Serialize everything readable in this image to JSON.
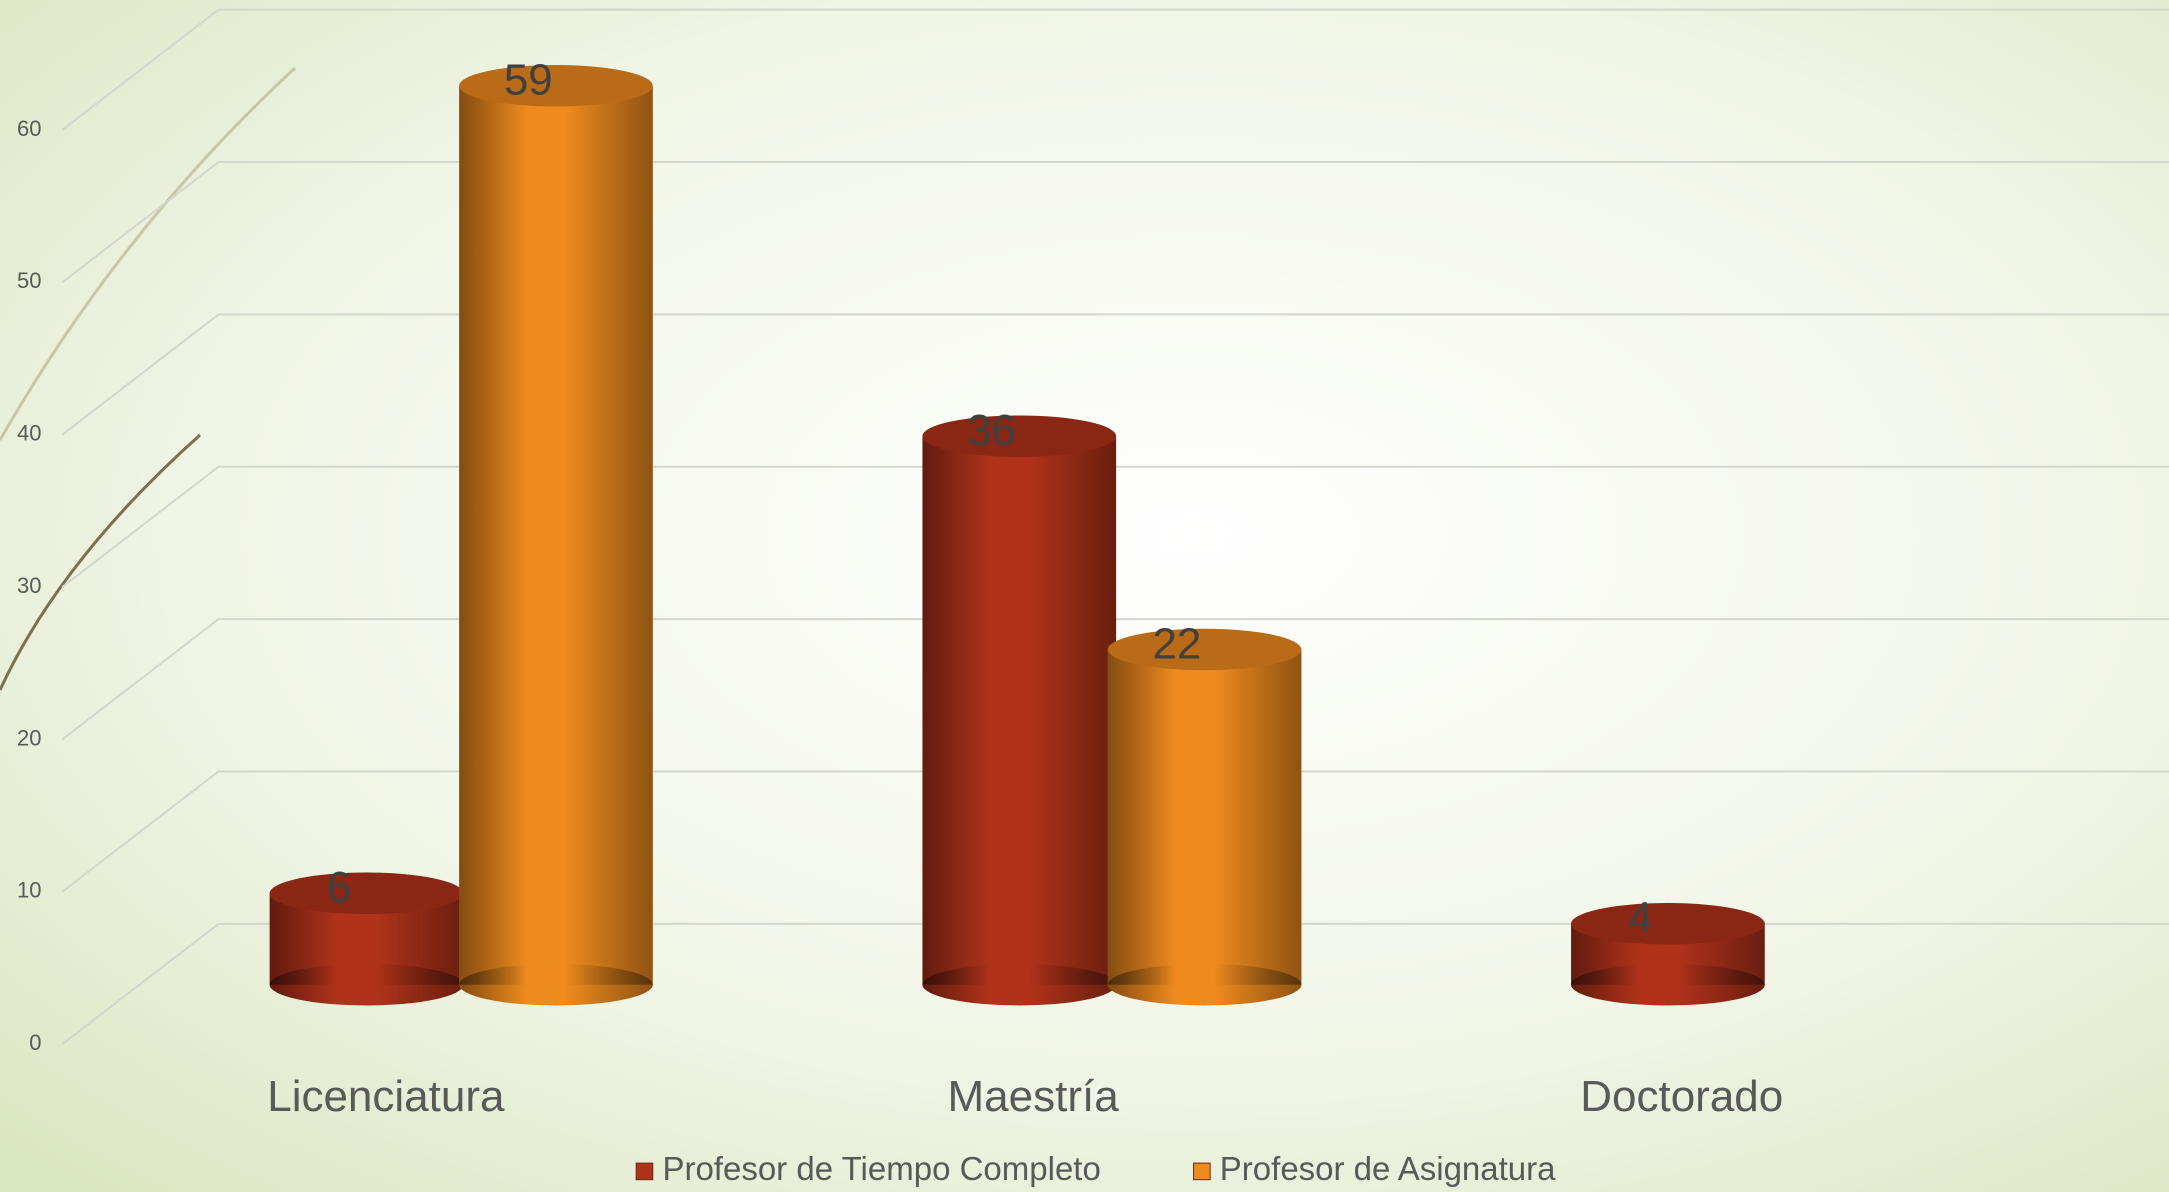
{
  "chart_data": {
    "type": "bar",
    "categories": [
      "Licenciatura",
      "Maestría",
      "Doctorado"
    ],
    "series": [
      {
        "name": "Profesor de Tiempo Completo",
        "color": "#b0321a",
        "values": [
          6,
          36,
          4
        ]
      },
      {
        "name": "Profesor de Asignatura",
        "color": "#ee8a1e",
        "values": [
          59,
          22,
          null
        ]
      }
    ],
    "ylim": [
      0,
      60
    ],
    "yticks": [
      0,
      10,
      20,
      30,
      40,
      50,
      60
    ],
    "grid": true,
    "legend": "bottom"
  }
}
